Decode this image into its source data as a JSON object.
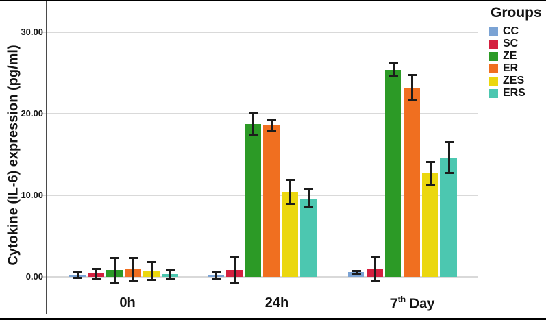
{
  "chart_data": {
    "type": "bar",
    "title": "",
    "xlabel": "",
    "ylabel": "Cytokine (IL-6) expression (pg/ml)",
    "categories": [
      "0h",
      "24h",
      "7th Day"
    ],
    "x_tick_render": [
      {
        "base": "0h",
        "sup": "",
        "rest": ""
      },
      {
        "base": "24h",
        "sup": "",
        "rest": ""
      },
      {
        "base": "7",
        "sup": "th",
        "rest": " Day"
      }
    ],
    "y_ticks": [
      {
        "value": 0,
        "label": "0.00"
      },
      {
        "value": 10,
        "label": "10.00"
      },
      {
        "value": 20,
        "label": "20.00"
      },
      {
        "value": 30,
        "label": "30.00"
      }
    ],
    "ylim": [
      0,
      34
    ],
    "grid": true,
    "error_bars": true,
    "legend": {
      "title": "Groups",
      "position": "right",
      "entries": [
        "CC",
        "SC",
        "ZE",
        "ER",
        "ZES",
        "ERS"
      ]
    },
    "series": [
      {
        "name": "CC",
        "color": "#7BA3D4",
        "values": [
          0.25,
          0.2,
          0.55
        ],
        "errors": [
          0.5,
          0.5,
          0.3
        ]
      },
      {
        "name": "SC",
        "color": "#D4203F",
        "values": [
          0.4,
          0.85,
          0.95
        ],
        "errors": [
          0.7,
          1.7,
          1.6
        ]
      },
      {
        "name": "ZE",
        "color": "#2C9A26",
        "values": [
          0.8,
          18.7,
          25.4
        ],
        "errors": [
          1.6,
          1.5,
          0.9
        ]
      },
      {
        "name": "ER",
        "color": "#F06F20",
        "values": [
          0.9,
          18.6,
          23.2
        ],
        "errors": [
          1.5,
          0.8,
          1.7
        ]
      },
      {
        "name": "ZES",
        "color": "#EBD70E",
        "values": [
          0.7,
          10.4,
          12.7
        ],
        "errors": [
          1.2,
          1.6,
          1.5
        ]
      },
      {
        "name": "ERS",
        "color": "#4CC7B0",
        "values": [
          0.3,
          9.6,
          14.6
        ],
        "errors": [
          0.7,
          1.2,
          2.0
        ]
      }
    ]
  },
  "colors": {
    "grid": "#d9d9d9",
    "axis": "#4a4a4a",
    "error_bar": "#1c1c1c",
    "text": "#141414",
    "background": "#ffffff",
    "border": "#000000"
  }
}
